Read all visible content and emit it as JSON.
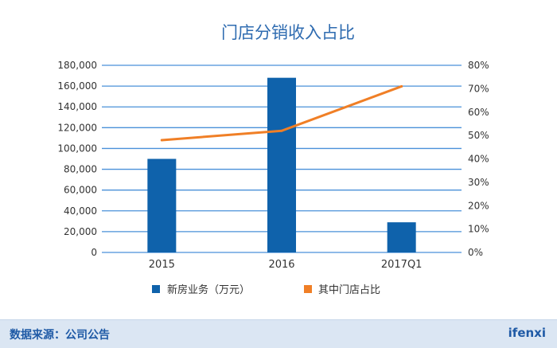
{
  "chart_data": {
    "type": "bar",
    "title": "门店分销收入占比",
    "categories": [
      "2015",
      "2016",
      "2017Q1"
    ],
    "series": [
      {
        "name": "新房业务（万元）",
        "type": "bar",
        "axis": "left",
        "color": "#0f62ab",
        "values": [
          90000,
          168000,
          29000
        ]
      },
      {
        "name": "其中门店占比",
        "type": "line",
        "axis": "right",
        "color": "#f07f26",
        "values": [
          0.48,
          0.52,
          0.71
        ]
      }
    ],
    "y_left": {
      "range": [
        0,
        180000
      ],
      "ticks": [
        0,
        20000,
        40000,
        60000,
        80000,
        100000,
        120000,
        140000,
        160000,
        180000
      ],
      "tick_labels": [
        "0",
        "20,000",
        "40,000",
        "60,000",
        "80,000",
        "100,000",
        "120,000",
        "140,000",
        "160,000",
        "180,000"
      ]
    },
    "y_right": {
      "range": [
        0,
        0.8
      ],
      "ticks": [
        0,
        0.1,
        0.2,
        0.3,
        0.4,
        0.5,
        0.6,
        0.7,
        0.8
      ],
      "tick_labels": [
        "0%",
        "10%",
        "20%",
        "30%",
        "40%",
        "50%",
        "60%",
        "70%",
        "80%"
      ]
    },
    "grid": true,
    "grid_color": "#4a90d9",
    "legend_position": "bottom"
  },
  "footer": {
    "source": "数据来源：公司公告",
    "brand": "ifenxi"
  }
}
